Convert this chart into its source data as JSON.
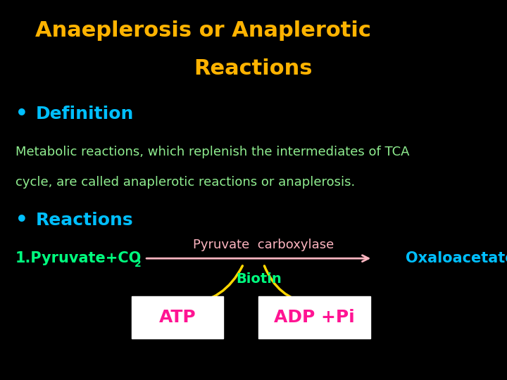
{
  "background_color": "#000000",
  "title_line1": "Anaeplerosis or Anaplerotic",
  "title_line2": "Reactions",
  "title_color": "#FFB300",
  "bullet_color": "#00BFFF",
  "def_label": "Definition",
  "def_text_line1": "Metabolic reactions, which replenish the intermediates of TCA",
  "def_text_line2": "cycle, are called anaplerotic reactions or anaplerosis.",
  "def_text_color": "#90EE90",
  "reactions_label": "Reactions",
  "rxn1_left": "1.Pyruvate+CO",
  "rxn1_sub": "2",
  "rxn1_color": "#00FF7F",
  "enzyme_text": "Pyruvate  carboxylase",
  "enzyme_color": "#FFB6C1",
  "arrow_main_color": "#FFB6C1",
  "product_text": "Oxaloacetate",
  "product_color": "#00BFFF",
  "biotin_text": "Biotin",
  "biotin_color": "#00FF7F",
  "biotin_arrow_color": "#FFD700",
  "atp_text": "ATP",
  "atp_color": "#FF1493",
  "adp_text": "ADP +Pi",
  "adp_color": "#FF1493",
  "box_fill": "#FFFFFF"
}
